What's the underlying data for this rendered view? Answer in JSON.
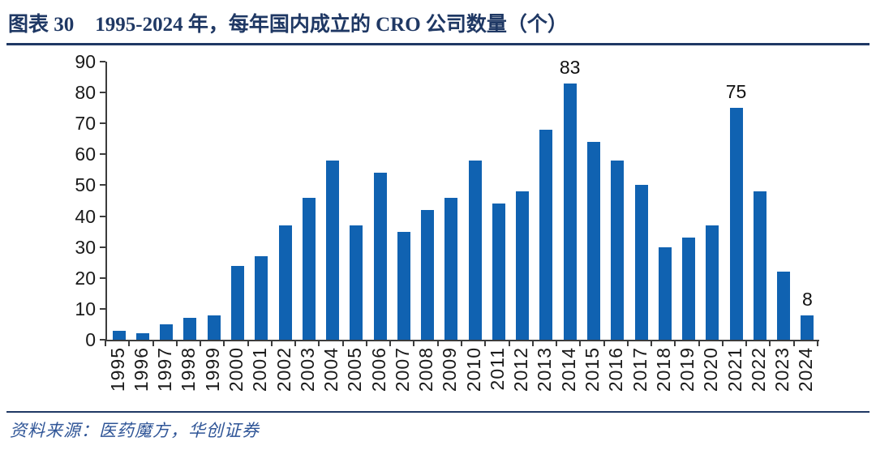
{
  "header": {
    "figure_label": "图表 30",
    "figure_title": "1995-2024 年，每年国内成立的 CRO 公司数量（个）"
  },
  "footer": {
    "source": "资料来源：医药魔方，华创证券"
  },
  "colors": {
    "bar": "#1062B1",
    "accent_navy": "#1F3864",
    "source_text": "#2F5597",
    "axis_line": "#3C3C3C"
  },
  "chart_data": {
    "type": "bar",
    "title": "1995-2024 年，每年国内成立的 CRO 公司数量（个）",
    "categories": [
      "1995",
      "1996",
      "1997",
      "1998",
      "1999",
      "2000",
      "2001",
      "2002",
      "2003",
      "2004",
      "2005",
      "2006",
      "2007",
      "2008",
      "2009",
      "2010",
      "2011",
      "2012",
      "2013",
      "2014",
      "2015",
      "2016",
      "2017",
      "2018",
      "2019",
      "2020",
      "2021",
      "2022",
      "2023",
      "2024"
    ],
    "values": [
      3,
      2,
      5,
      7,
      8,
      24,
      27,
      37,
      46,
      58,
      37,
      54,
      35,
      42,
      46,
      58,
      44,
      48,
      68,
      83,
      64,
      58,
      50,
      30,
      33,
      37,
      75,
      48,
      22,
      8
    ],
    "data_labels": {
      "2014": "83",
      "2021": "75",
      "2024": "8"
    },
    "xlabel": "",
    "ylabel": "",
    "ylim": [
      0,
      90
    ],
    "ytick_step": 10,
    "grid": false,
    "legend": null,
    "bar_color": "#1062B1"
  }
}
